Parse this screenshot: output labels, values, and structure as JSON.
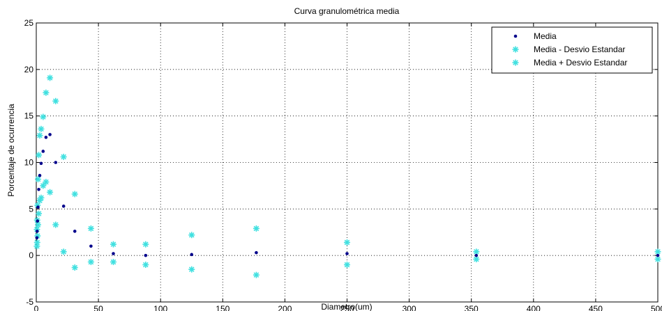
{
  "chart_data": {
    "type": "scatter",
    "title": "Curva granulométrica media",
    "xlabel": "Diametro(um)",
    "ylabel": "Porcentaje de ocurrencia",
    "xlim": [
      0,
      500
    ],
    "ylim": [
      -5,
      25
    ],
    "xticks": [
      0,
      50,
      100,
      150,
      200,
      250,
      300,
      350,
      400,
      450,
      500
    ],
    "yticks": [
      -5,
      0,
      5,
      10,
      15,
      20,
      25
    ],
    "xtick_labels": [
      "0",
      "50",
      "100",
      "150",
      "200",
      "250",
      "300",
      "350",
      "400",
      "450",
      "500"
    ],
    "ytick_labels": [
      "-5",
      "0",
      "5",
      "10",
      "15",
      "20",
      "25"
    ],
    "grid": true,
    "legend_position": "top-right",
    "x": [
      0.5,
      0.7,
      1.0,
      1.4,
      2.0,
      2.8,
      3.9,
      5.5,
      7.8,
      11,
      15.6,
      22,
      31,
      44,
      62,
      88,
      125,
      177,
      250,
      354,
      500
    ],
    "series": [
      {
        "name": "Media",
        "marker": "dot",
        "color": "#00008b",
        "values": [
          1.9,
          2.6,
          3.7,
          5.2,
          7.1,
          8.6,
          9.9,
          11.2,
          12.7,
          13.0,
          10.0,
          5.3,
          2.6,
          1.0,
          0.2,
          0.0,
          0.1,
          0.3,
          0.2,
          0.0,
          0.0
        ]
      },
      {
        "name": "Media - Desvio Estandar",
        "marker": "star",
        "color": "#40e0e0",
        "values": [
          1.0,
          1.4,
          2.1,
          3.3,
          4.5,
          5.9,
          6.2,
          7.5,
          7.9,
          6.8,
          3.3,
          0.4,
          -1.3,
          -0.7,
          -0.7,
          -1.0,
          -1.5,
          -2.1,
          -1.0,
          -0.4,
          -0.4
        ]
      },
      {
        "name": "Media + Desvio Estandar",
        "marker": "star",
        "color": "#40e0e0",
        "values": [
          2.8,
          3.8,
          5.4,
          8.2,
          10.8,
          12.9,
          13.6,
          14.9,
          17.5,
          19.1,
          16.6,
          10.6,
          6.6,
          2.9,
          1.2,
          1.2,
          2.2,
          2.9,
          1.4,
          0.4,
          0.4
        ]
      }
    ]
  }
}
